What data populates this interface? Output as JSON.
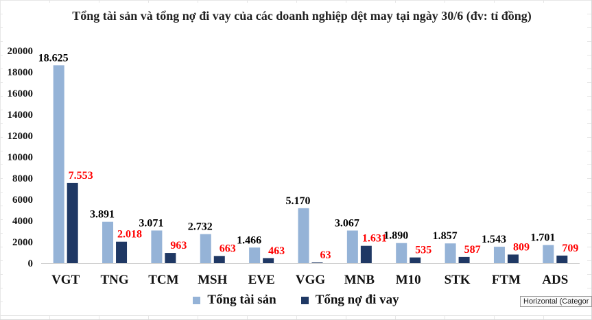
{
  "chart_data": {
    "type": "bar",
    "title": "Tổng tài sản và tổng nợ đi vay của các doanh nghiệp dệt may tại ngày 30/6 (đv: tỉ đồng)",
    "categories": [
      "VGT",
      "TNG",
      "TCM",
      "MSH",
      "EVE",
      "VGG",
      "MNB",
      "M10",
      "STK",
      "FTM",
      "ADS"
    ],
    "series": [
      {
        "name": "Tổng tài sản",
        "color": "#95b3d7",
        "label_color": "#000000",
        "values": [
          18625,
          3891,
          3071,
          2732,
          1466,
          5170,
          3067,
          1890,
          1857,
          1543,
          1701
        ],
        "labels": [
          "18.625",
          "3.891",
          "3.071",
          "2.732",
          "1.466",
          "5.170",
          "3.067",
          "1.890",
          "1.857",
          "1.543",
          "1.701"
        ]
      },
      {
        "name": "Tổng nợ đi vay",
        "color": "#1f3864",
        "label_color": "#ff0000",
        "values": [
          7553,
          2018,
          963,
          663,
          463,
          63,
          1631,
          535,
          587,
          809,
          709
        ],
        "labels": [
          "7.553",
          "2.018",
          "963",
          "663",
          "463",
          "63",
          "1.631",
          "535",
          "587",
          "809",
          "709"
        ]
      }
    ],
    "ylim": [
      0,
      20000
    ],
    "yticks": [
      "0",
      "2000",
      "4000",
      "6000",
      "8000",
      "10000",
      "12000",
      "14000",
      "16000",
      "18000",
      "20000"
    ],
    "grid": false,
    "legend_position": "bottom"
  },
  "tooltip": {
    "text": "Horizontal (Categor"
  }
}
